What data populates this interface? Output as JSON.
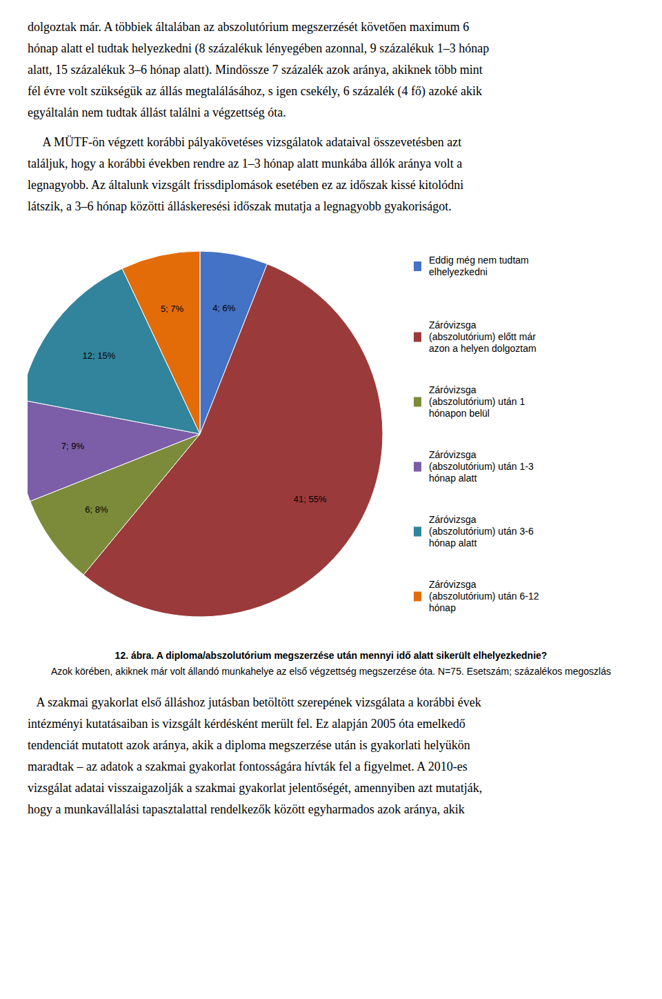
{
  "chart_data": {
    "type": "pie",
    "title": "12. ábra. A diploma/abszolutórium megszerzése után mennyi idő alatt sikerült elhelyezkednie?",
    "subtitle": "Azok körében, akiknek már volt állandó munkahelye az első végzettség megszerzése óta. N=75. Esetszám; százalékos megoszlás",
    "categories": [
      "Eddig még nem tudtam\nelhelyezkedni",
      "Záróvizsga\n(abszolutórium) előtt már\nazon a helyen dolgoztam",
      "Záróvizsga\n(abszolutórium) után 1\nhónapon belül",
      "Záróvizsga\n(abszolutórium) után 1-3\nhónap alatt",
      "Záróvizsga\n(abszolutórium) után 3-6\nhónap alatt",
      "Záróvizsga\n(abszolutórium) után 6-12\nhónap"
    ],
    "values": [
      6,
      55,
      8,
      9,
      15,
      7
    ],
    "value_labels": [
      "4; 6%",
      "41; 55%",
      "6; 8%",
      "7; 9%",
      "12; 15%",
      "5; 7%"
    ],
    "colors": [
      "#4472C4",
      "#9B3A3A",
      "#7B8B3A",
      "#7B5EA7",
      "#31849B",
      "#E36C09"
    ],
    "data_labels": true,
    "legend": "right"
  },
  "text_above": [
    [
      "dolgoztak már. A többiek általában az abszolutórium megszerzését követően maximum 6",
      "hónap alatt el tudtak helyezkedni (8 százalékuk lényegében azonnal, 9 százalékuk 1–3 hónap",
      "alatt, 15 százalékuk 3–6 hónap alatt). Mindössze 7 százalék azok aránya, akiknek több mint",
      "fél évre volt szükségük az állás megtalálásához, s igen csekély, 6 százalék (4 fő) azoké akik",
      "egyáltalán nem tudtak állást találni a végzettség óta."
    ],
    [
      "     A MÜTF-ön végzett korábbi pályakövetéses vizsgálatok adataival összevetésben azt",
      "találjuk, hogy a korábbi években rendre az 1–3 hónap alatt munkába állók aránya volt a",
      "legnagyobb. Az általunk vizsgált frissdiplomások esetében ez az időszak kissé kitolódni",
      "látszik, a 3–6 hónap közötti álláskeresési időszak mutatja a legnagyobb gyakoriságot."
    ]
  ],
  "text_below": [
    [
      "   A szakmai gyakorlat első álláshoz jutásban betöltött szerepének vizsgálata a korábbi évek",
      "intézményi kutatásaiban is vizsgált kérdésként merült fel. Ez alapján 2005 óta emelkedő",
      "tendenciát mutatott azok aránya, akik a diploma megszerzése után is gyakorlati helyükön",
      "maradtak – az adatok a szakmai gyakorlat fontosságára hívták fel a figyelmet. A 2010-es",
      "vizsgálat adatai visszaigazolják a szakmai gyakorlat jelentőségét, amennyiben azt mutatják,",
      "hogy a munkavállalási tapasztalattal rendelkezők között egyharmados azok aránya, akik"
    ]
  ]
}
